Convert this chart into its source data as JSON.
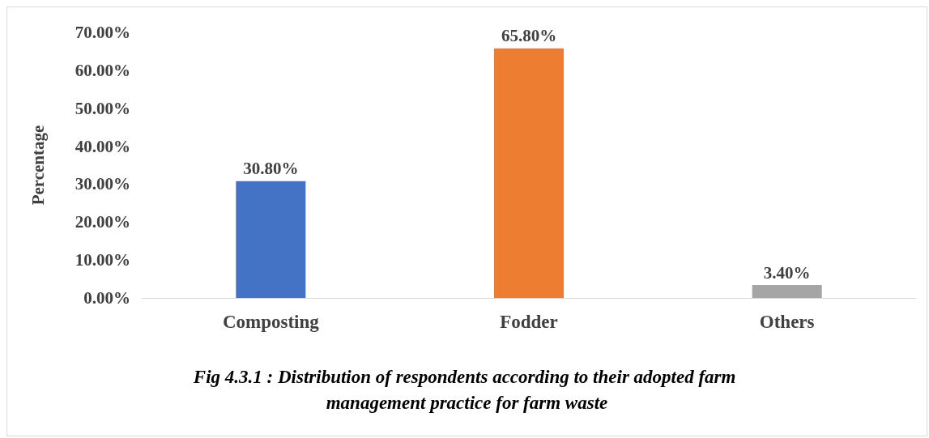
{
  "chart_data": {
    "type": "bar",
    "categories": [
      "Composting",
      "Fodder",
      "Others"
    ],
    "values": [
      30.8,
      65.8,
      3.4
    ],
    "colors": [
      "#4472c4",
      "#ed7d31",
      "#a5a5a5"
    ],
    "value_labels": [
      "30.80%",
      "65.80%",
      "3.40%"
    ],
    "ylabel": "Percentage",
    "ylim": [
      0,
      70
    ],
    "yticks": [
      {
        "value": 0,
        "label": "0.00%"
      },
      {
        "value": 10,
        "label": "10.00%"
      },
      {
        "value": 20,
        "label": "20.00%"
      },
      {
        "value": 30,
        "label": "30.00%"
      },
      {
        "value": 40,
        "label": "40.00%"
      },
      {
        "value": 50,
        "label": "50.00%"
      },
      {
        "value": 60,
        "label": "60.00%"
      },
      {
        "value": 70,
        "label": "70.00%"
      }
    ],
    "grid": false,
    "annotations": [
      "Fig 4.3.1 : Distribution of respondents according to their adopted farm management practice for farm waste"
    ]
  }
}
